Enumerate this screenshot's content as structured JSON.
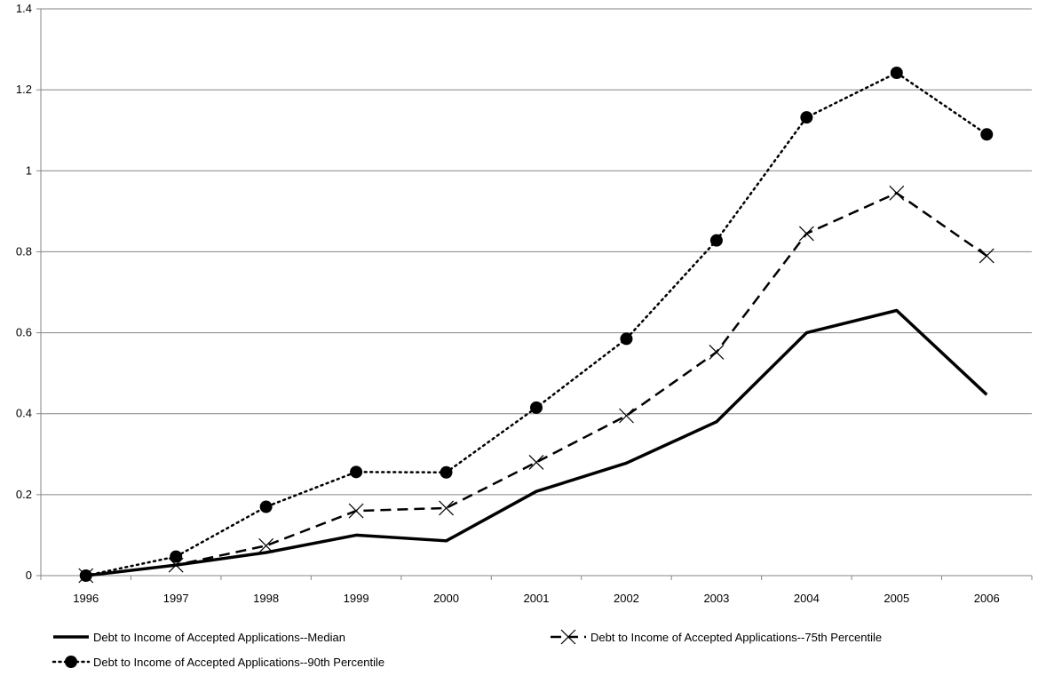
{
  "chart_data": {
    "type": "line",
    "title": "",
    "xlabel": "",
    "ylabel": "",
    "categories": [
      "1996",
      "1997",
      "1998",
      "1999",
      "2000",
      "2001",
      "2002",
      "2003",
      "2004",
      "2005",
      "2006"
    ],
    "ylim": [
      0,
      1.4
    ],
    "yticks": [
      "0",
      "0.2",
      "0.4",
      "0.6",
      "0.8",
      "1",
      "1.2",
      "1.4"
    ],
    "grid": "horizontal",
    "legend_position": "bottom",
    "series": [
      {
        "name": "Debt to Income of Accepted Applications--Median",
        "style": "solid",
        "marker": "none",
        "color": "#000000",
        "values": [
          0,
          0.026,
          0.057,
          0.1,
          0.086,
          0.208,
          0.278,
          0.38,
          0.6,
          0.655,
          0.447
        ]
      },
      {
        "name": "Debt to Income of Accepted Applications--75th Percentile",
        "style": "dashed",
        "marker": "x",
        "color": "#000000",
        "values": [
          0,
          0.026,
          0.074,
          0.16,
          0.167,
          0.28,
          0.395,
          0.552,
          0.845,
          0.945,
          0.79
        ]
      },
      {
        "name": "Debt to Income of Accepted Applications--90th Percentile",
        "style": "dotted",
        "marker": "circle",
        "color": "#000000",
        "values": [
          0,
          0.047,
          0.17,
          0.256,
          0.255,
          0.415,
          0.585,
          0.828,
          1.132,
          1.242,
          1.09
        ]
      }
    ]
  }
}
